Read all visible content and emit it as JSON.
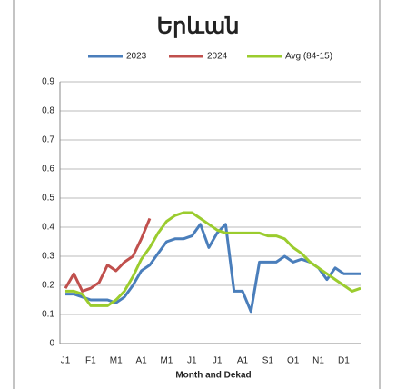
{
  "chart_data": {
    "type": "line",
    "title": "Երևան",
    "x_label": "Month and Dekad",
    "categories": [
      "J1",
      null,
      null,
      "F1",
      null,
      null,
      "M1",
      null,
      null,
      "A1",
      null,
      null,
      "M1",
      null,
      null,
      "J1",
      null,
      null,
      "J1",
      null,
      null,
      "A1",
      null,
      null,
      "S1",
      null,
      null,
      "O1",
      null,
      null,
      "N1",
      null,
      null,
      "D1",
      null,
      null
    ],
    "series": [
      {
        "name": "2023",
        "color": "#4a7ebb",
        "values": [
          0.17,
          0.17,
          0.16,
          0.15,
          0.15,
          0.15,
          0.14,
          0.16,
          0.2,
          0.25,
          0.27,
          0.31,
          0.35,
          0.36,
          0.36,
          0.37,
          0.41,
          0.33,
          0.38,
          0.41,
          0.18,
          0.18,
          0.11,
          0.28,
          0.28,
          0.28,
          0.3,
          0.28,
          0.29,
          0.28,
          0.26,
          0.22,
          0.26,
          0.24,
          0.24,
          0.24
        ]
      },
      {
        "name": "2024",
        "color": "#c0504d",
        "values": [
          0.19,
          0.24,
          0.18,
          0.19,
          0.21,
          0.27,
          0.25,
          0.28,
          0.3,
          0.36,
          0.43,
          null,
          null,
          null,
          null,
          null,
          null,
          null,
          null,
          null,
          null,
          null,
          null,
          null,
          null,
          null,
          null,
          null,
          null,
          null,
          null,
          null,
          null,
          null,
          null,
          null
        ]
      },
      {
        "name": "Avg (84-15)",
        "color": "#9bcc2e",
        "values": [
          0.18,
          0.18,
          0.17,
          0.13,
          0.13,
          0.13,
          0.15,
          0.18,
          0.23,
          0.29,
          0.33,
          0.38,
          0.42,
          0.44,
          0.45,
          0.45,
          0.43,
          0.41,
          0.39,
          0.38,
          0.38,
          0.38,
          0.38,
          0.38,
          0.37,
          0.37,
          0.36,
          0.33,
          0.31,
          0.28,
          0.26,
          0.24,
          0.22,
          0.2,
          0.18,
          0.19
        ]
      }
    ],
    "ylim": [
      0,
      0.9
    ],
    "yticks": [
      0,
      0.1,
      0.2,
      0.3,
      0.4,
      0.5,
      0.6,
      0.7,
      0.8,
      0.9
    ],
    "grid": true,
    "legend": "top"
  }
}
